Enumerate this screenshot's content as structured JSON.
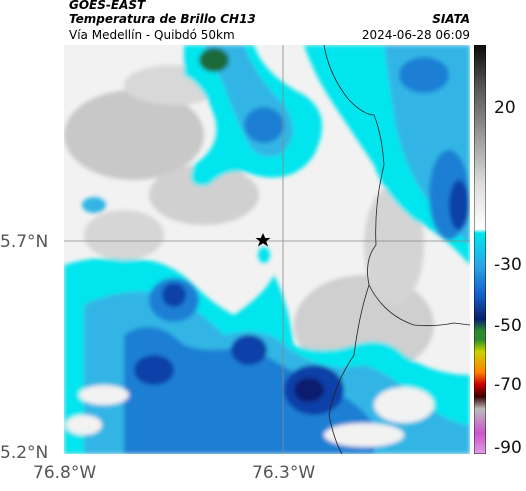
{
  "header": {
    "satellite": "GOES-EAST",
    "product": "Temperatura de Brillo CH13",
    "region": "Vía Medellín - Quibdó 50km",
    "organization": "SIATA",
    "timestamp": "2024-06-28 06:09"
  },
  "map": {
    "lat_labels": [
      "5.7°N",
      "5.2°N"
    ],
    "lon_labels": [
      "76.8°W",
      "76.3°W"
    ],
    "marker": "star",
    "gridlines": true,
    "colors": {
      "cloud_warm": "#f2f2f2",
      "cloud_gray": "#c8c8c8",
      "cyan": "#00e5ee",
      "light_blue": "#33b5e5",
      "mid_blue": "#1a7fd4",
      "deep_blue": "#0b3fa8",
      "navy": "#0a1f6e",
      "green": "#1d6b3a",
      "border_line": "#222222"
    }
  },
  "colorbar": {
    "tick_labels": [
      "20",
      "-30",
      "-50",
      "-70",
      "-90"
    ],
    "stops": [
      "#0a0a0a",
      "#555555",
      "#999999",
      "#dddddd",
      "#ffffff",
      "#00e5ee",
      "#2aa6e8",
      "#1560c8",
      "#0a1f6e",
      "#2e8b2e",
      "#c8d400",
      "#ff8000",
      "#cc0000",
      "#3a0000",
      "#bbbbbb",
      "#cc55cc"
    ]
  }
}
